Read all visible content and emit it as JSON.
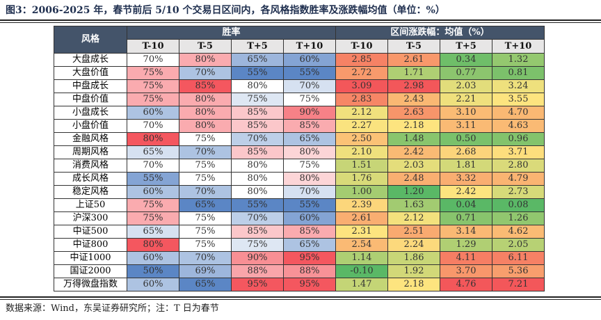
{
  "title": "图3：2006-2025 年，春节前后 5/10 个交易日区间内，各风格指数胜率及涨跌幅均值（单位：%）",
  "header": {
    "style": "风格",
    "win_rate": "胜率",
    "return_mean": "区间涨跌幅：均值（%）",
    "periods": [
      "T-10",
      "T-5",
      "T+5",
      "T+10"
    ]
  },
  "rows": [
    {
      "name": "大盘成长",
      "win": [
        "70%",
        "80%",
        "65%",
        "60%"
      ],
      "ret": [
        "2.85",
        "2.61",
        "0.34",
        "1.32"
      ]
    },
    {
      "name": "大盘价值",
      "win": [
        "75%",
        "70%",
        "55%",
        "55%"
      ],
      "ret": [
        "2.72",
        "1.71",
        "0.77",
        "0.81"
      ]
    },
    {
      "name": "中盘成长",
      "win": [
        "75%",
        "85%",
        "80%",
        "70%"
      ],
      "ret": [
        "3.09",
        "2.98",
        "2.03",
        "3.24"
      ]
    },
    {
      "name": "中盘价值",
      "win": [
        "75%",
        "80%",
        "75%",
        "75%"
      ],
      "ret": [
        "2.83",
        "2.43",
        "2.21",
        "3.55"
      ]
    },
    {
      "name": "小盘成长",
      "win": [
        "60%",
        "80%",
        "85%",
        "90%"
      ],
      "ret": [
        "2.12",
        "2.63",
        "3.10",
        "4.70"
      ]
    },
    {
      "name": "小盘价值",
      "win": [
        "70%",
        "80%",
        "85%",
        "85%"
      ],
      "ret": [
        "2.27",
        "2.18",
        "3.11",
        "4.63"
      ]
    },
    {
      "name": "金融风格",
      "win": [
        "80%",
        "75%",
        "70%",
        "65%"
      ],
      "ret": [
        "2.50",
        "1.48",
        "0.50",
        "0.96"
      ]
    },
    {
      "name": "周期风格",
      "win": [
        "65%",
        "70%",
        "85%",
        "80%"
      ],
      "ret": [
        "2.10",
        "2.42",
        "2.68",
        "3.71"
      ]
    },
    {
      "name": "消费风格",
      "win": [
        "70%",
        "75%",
        "80%",
        "75%"
      ],
      "ret": [
        "1.51",
        "2.03",
        "1.81",
        "2.80"
      ]
    },
    {
      "name": "成长风格",
      "win": [
        "55%",
        "75%",
        "80%",
        "80%"
      ],
      "ret": [
        "1.76",
        "2.48",
        "3.32",
        "4.79"
      ]
    },
    {
      "name": "稳定风格",
      "win": [
        "60%",
        "70%",
        "80%",
        "70%"
      ],
      "ret": [
        "1.00",
        "1.20",
        "2.42",
        "2.73"
      ]
    },
    {
      "name": "上证50",
      "win": [
        "75%",
        "65%",
        "55%",
        "55%"
      ],
      "ret": [
        "2.39",
        "1.63",
        "0.04",
        "0.08"
      ]
    },
    {
      "name": "沪深300",
      "win": [
        "75%",
        "75%",
        "70%",
        "60%"
      ],
      "ret": [
        "2.61",
        "2.12",
        "0.71",
        "1.26"
      ]
    },
    {
      "name": "中证500",
      "win": [
        "65%",
        "75%",
        "85%",
        "85%"
      ],
      "ret": [
        "2.31",
        "2.51",
        "3.14",
        "4.62"
      ]
    },
    {
      "name": "中证800",
      "win": [
        "80%",
        "75%",
        "75%",
        "65%"
      ],
      "ret": [
        "2.54",
        "2.24",
        "1.29",
        "2.05"
      ]
    },
    {
      "name": "中证1000",
      "win": [
        "60%",
        "70%",
        "90%",
        "95%"
      ],
      "ret": [
        "1.14",
        "1.86",
        "4.11",
        "6.11"
      ]
    },
    {
      "name": "国证2000",
      "win": [
        "50%",
        "69%",
        "88%",
        "88%"
      ],
      "ret": [
        "-0.10",
        "1.92",
        "3.70",
        "5.36"
      ]
    },
    {
      "name": "万得微盘指数",
      "win": [
        "60%",
        "65%",
        "95%",
        "95%"
      ],
      "ret": [
        "1.47",
        "2.18",
        "4.76",
        "7.21"
      ]
    }
  ],
  "colors": {
    "header_bg": "#44546a",
    "subheader_bg": "#e7e6e6",
    "win_low": "#5b86c5",
    "win_mid": "#ffffff",
    "win_high": "#f4575f",
    "ret_low": "#5ab866",
    "ret_mid": "#fde47f",
    "ret_high": "#f3575a"
  },
  "source": "数据来源：Wind，东吴证券研究所；注：T 日为春节"
}
